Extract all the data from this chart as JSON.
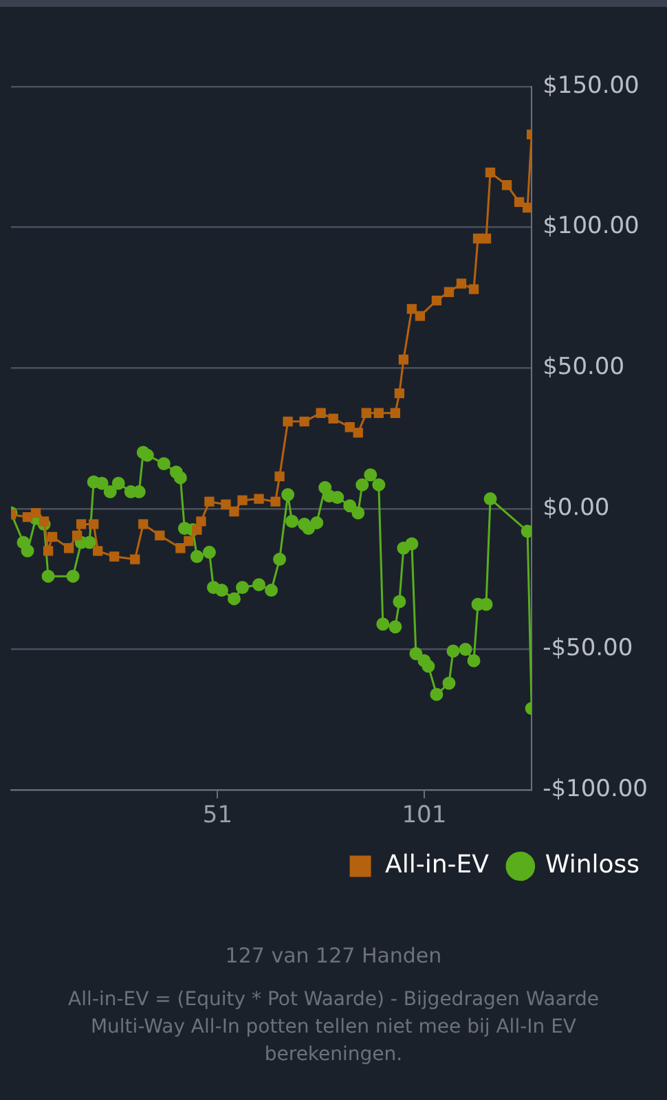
{
  "chart_data": {
    "type": "line",
    "xlim": [
      1,
      127
    ],
    "xticks": [
      51,
      101
    ],
    "ylim": [
      -100,
      150
    ],
    "yticks": [
      {
        "value": -100,
        "label": "-$100.00"
      },
      {
        "value": -50,
        "label": "-$50.00"
      },
      {
        "value": 0,
        "label": "$0.00"
      },
      {
        "value": 50,
        "label": "$50.00"
      },
      {
        "value": 100,
        "label": "$100.00"
      },
      {
        "value": 150,
        "label": "$150.00"
      }
    ],
    "grid": "y",
    "legend": "bottom right",
    "series": [
      {
        "name": "All-in-EV",
        "color": "#b5620e",
        "marker": "square",
        "x": [
          1,
          5,
          7,
          9,
          10,
          11,
          15,
          17,
          18,
          21,
          22,
          26,
          31,
          33,
          37,
          42,
          44,
          46,
          47,
          49,
          53,
          55,
          57,
          61,
          65,
          66,
          68,
          72,
          76,
          79,
          83,
          85,
          87,
          90,
          94,
          95,
          96,
          98,
          100,
          104,
          107,
          110,
          113,
          114,
          116,
          117,
          121,
          124,
          126,
          127
        ],
        "values": [
          -2,
          -3,
          -1.5,
          -4.5,
          -15,
          -10,
          -14,
          -9.5,
          -5.5,
          -5.5,
          -15,
          -17,
          -18,
          -5.5,
          -9.5,
          -14,
          -11.5,
          -7.5,
          -4.5,
          2.5,
          1.5,
          -1,
          3,
          3.5,
          2.5,
          11.5,
          31,
          31,
          34,
          32,
          29,
          27,
          34,
          34,
          34,
          41,
          53,
          71,
          68.5,
          74,
          77,
          80,
          78,
          96,
          96,
          119.5,
          115,
          109,
          107,
          133
        ]
      },
      {
        "name": "Winloss",
        "color": "#5aae1c",
        "marker": "circle",
        "x": [
          1,
          4,
          5,
          7,
          9,
          10,
          16,
          18,
          20,
          21,
          23,
          25,
          27,
          30,
          32,
          33,
          34,
          38,
          41,
          42,
          43,
          45,
          46,
          49,
          50,
          52,
          55,
          57,
          61,
          64,
          66,
          68,
          69,
          72,
          73,
          75,
          77,
          78,
          80,
          83,
          85,
          86,
          88,
          90,
          91,
          94,
          95,
          96,
          98,
          99,
          101,
          102,
          104,
          107,
          108,
          111,
          113,
          114,
          116,
          117,
          126,
          127
        ],
        "values": [
          -1.5,
          -12,
          -15,
          -3.5,
          -5.5,
          -24,
          -24,
          -12,
          -12,
          9.5,
          9,
          6,
          9,
          6,
          6,
          20,
          19,
          16,
          13,
          11,
          -7,
          -7.5,
          -17,
          -15.5,
          -28,
          -29,
          -32,
          -28,
          -27,
          -29,
          -18,
          5,
          -4.5,
          -5.5,
          -7,
          -5,
          7.5,
          4.5,
          4,
          1,
          -1.5,
          8.5,
          12,
          8.5,
          -41,
          -42,
          -33,
          -14,
          -12.5,
          -51.5,
          -54,
          -56,
          -66,
          -62,
          -50.6,
          -50,
          -54,
          -34,
          -34,
          3.5,
          -8,
          -71
        ]
      }
    ],
    "annotations": [
      "127 van 127 Handen",
      "All-in-EV = (Equity * Pot Waarde) - Bijgedragen Waarde",
      "Multi-Way All-In potten tellen niet mee bij All-In EV berekeningen."
    ]
  }
}
